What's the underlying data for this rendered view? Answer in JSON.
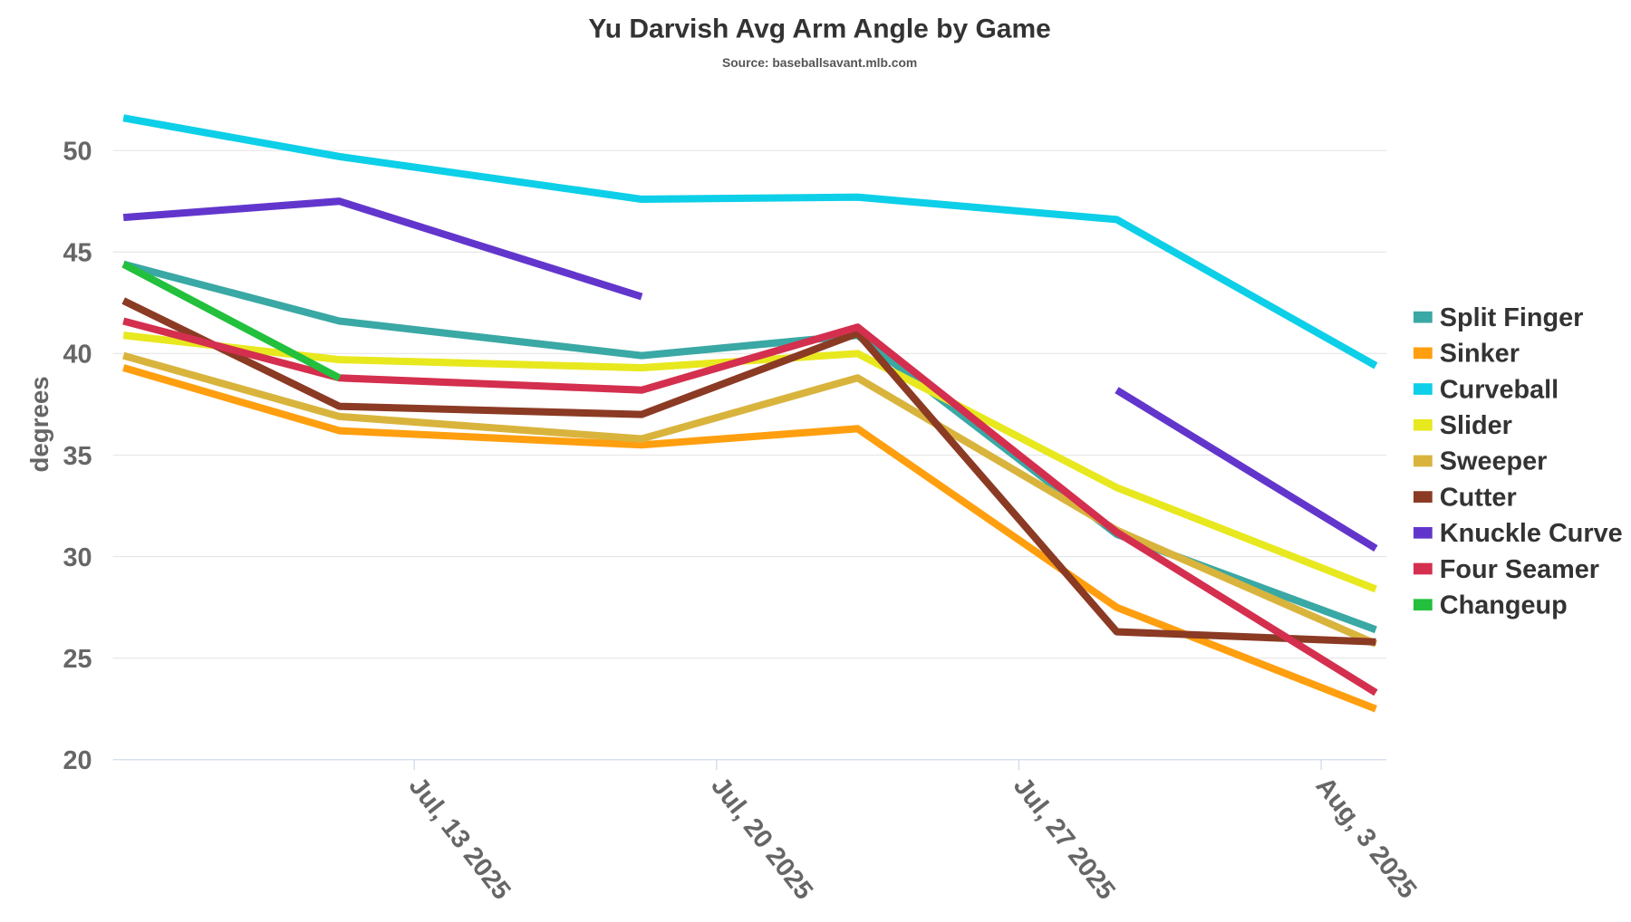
{
  "chart_data": {
    "type": "line",
    "title": "Yu Darvish Avg Arm Angle by Game",
    "subtitle": "Source: baseballsavant.mlb.com",
    "xlabel": "",
    "ylabel": "degrees",
    "ylim": [
      20,
      52
    ],
    "yticks": [
      20,
      25,
      30,
      35,
      40,
      45,
      50
    ],
    "xlim": [
      "2025-07-06",
      "2025-08-04"
    ],
    "xticks": [
      {
        "date": "2025-07-13",
        "label": "Jul, 13 2025"
      },
      {
        "date": "2025-07-20",
        "label": "Jul, 20 2025"
      },
      {
        "date": "2025-07-27",
        "label": "Jul, 27 2025"
      },
      {
        "date": "2025-08-03",
        "label": "Aug, 3 2025"
      }
    ],
    "grid": true,
    "legend": "right",
    "x": [
      "2025-07-06",
      "2025-07-11",
      "2025-07-18",
      "2025-07-23",
      "2025-07-29",
      "2025-08-04"
    ],
    "series": [
      {
        "name": "Split Finger",
        "color": "#3aa8a4",
        "values": [
          44.4,
          41.6,
          39.9,
          40.9,
          31.1,
          26.4
        ]
      },
      {
        "name": "Sinker",
        "color": "#ff9f0f",
        "values": [
          39.3,
          36.2,
          35.5,
          36.3,
          27.5,
          22.5
        ]
      },
      {
        "name": "Curveball",
        "color": "#0dcfe8",
        "values": [
          51.6,
          49.7,
          47.6,
          47.7,
          46.6,
          39.4
        ]
      },
      {
        "name": "Slider",
        "color": "#e8e81f",
        "values": [
          40.9,
          39.7,
          39.3,
          40.0,
          33.4,
          28.4
        ]
      },
      {
        "name": "Sweeper",
        "color": "#d9b43d",
        "values": [
          39.9,
          36.9,
          35.8,
          38.8,
          31.3,
          25.7
        ]
      },
      {
        "name": "Cutter",
        "color": "#8b3a24",
        "values": [
          42.6,
          37.4,
          37.0,
          41.0,
          26.3,
          25.8
        ]
      },
      {
        "name": "Knuckle Curve",
        "color": "#6236cc",
        "values": [
          46.7,
          47.5,
          42.8,
          null,
          38.2,
          30.4
        ]
      },
      {
        "name": "Four Seamer",
        "color": "#d42f4e",
        "values": [
          41.6,
          38.8,
          38.2,
          41.3,
          31.2,
          23.3
        ]
      },
      {
        "name": "Changeup",
        "color": "#22c03c",
        "values": [
          44.4,
          38.8,
          null,
          null,
          null,
          null
        ]
      }
    ]
  }
}
